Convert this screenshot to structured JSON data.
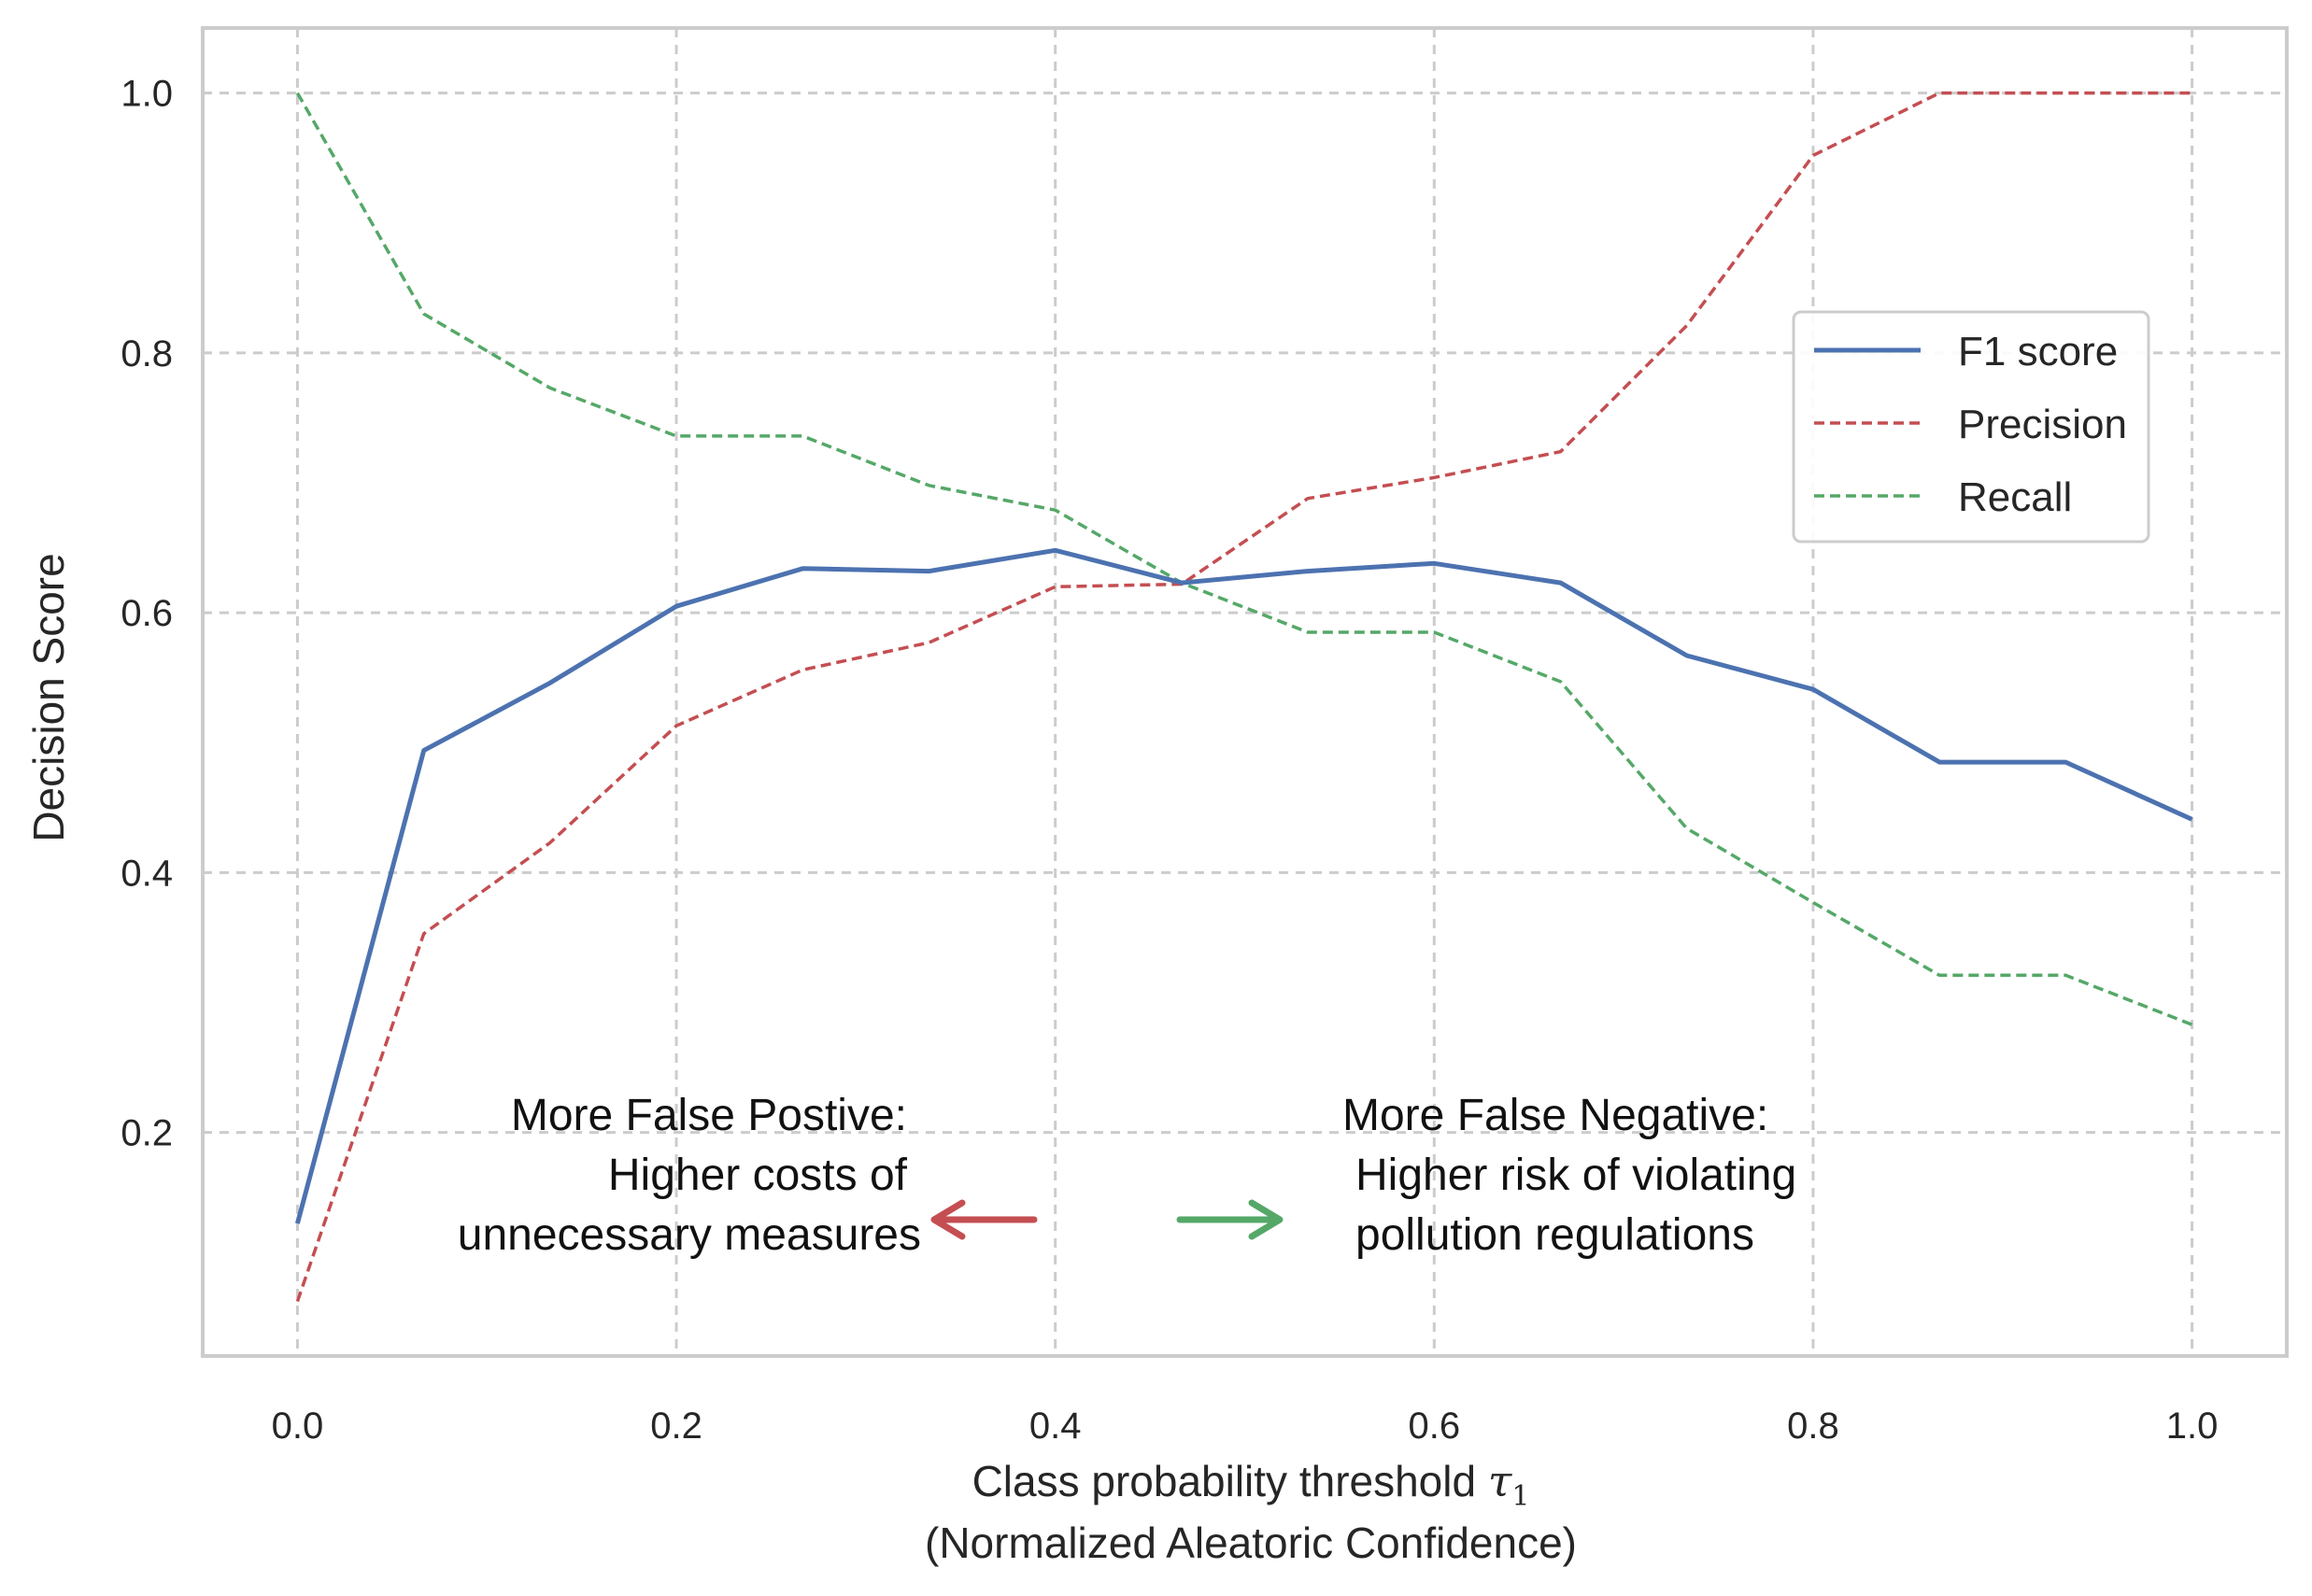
{
  "chart_data": {
    "type": "line",
    "xlabel_line1_prefix": "Class probability threshold ",
    "xlabel_symbol": "τ",
    "xlabel_subscript": "1",
    "xlabel_line2": "(Normalized Aleatoric Confidence)",
    "ylabel": "Decision Score",
    "xlim": [
      -0.05,
      1.05
    ],
    "ylim": [
      0.028,
      1.05
    ],
    "xticks": [
      0.0,
      0.2,
      0.4,
      0.6,
      0.8,
      1.0
    ],
    "xtick_labels": [
      "0.0",
      "0.2",
      "0.4",
      "0.6",
      "0.8",
      "1.0"
    ],
    "yticks": [
      0.2,
      0.4,
      0.6,
      0.8,
      1.0
    ],
    "ytick_labels": [
      "0.2",
      "0.4",
      "0.6",
      "0.8",
      "1.0"
    ],
    "grid": true,
    "legend_position": "center-right",
    "x": [
      0.0,
      0.0667,
      0.1333,
      0.2,
      0.2667,
      0.3333,
      0.4,
      0.4667,
      0.5333,
      0.6,
      0.6667,
      0.7333,
      0.8,
      0.8667,
      0.9333,
      1.0
    ],
    "series": [
      {
        "name": "F1 score",
        "color": "#4c72b0",
        "style": "solid",
        "values": [
          0.13,
          0.494,
          0.546,
          0.605,
          0.634,
          0.632,
          0.648,
          0.623,
          0.632,
          0.638,
          0.623,
          0.567,
          0.541,
          0.485,
          0.485,
          0.441
        ]
      },
      {
        "name": "Precision",
        "color": "#c44e52",
        "style": "dashed",
        "values": [
          0.07,
          0.353,
          0.423,
          0.513,
          0.556,
          0.577,
          0.62,
          0.622,
          0.688,
          0.704,
          0.724,
          0.821,
          0.952,
          1.0,
          1.0,
          1.0
        ]
      },
      {
        "name": "Recall",
        "color": "#55a868",
        "style": "dashed",
        "values": [
          1.0,
          0.83,
          0.773,
          0.736,
          0.736,
          0.698,
          0.679,
          0.623,
          0.585,
          0.585,
          0.547,
          0.434,
          0.377,
          0.321,
          0.321,
          0.283
        ]
      }
    ],
    "annotations": {
      "left_lines": [
        "More False Postive:",
        "Higher costs of",
        "unnecessary measures"
      ],
      "right_lines": [
        "More False Negative:",
        "Higher risk of violating",
        "pollution regulations"
      ],
      "left_arrow_color": "#c44e52",
      "right_arrow_color": "#55a868"
    }
  }
}
